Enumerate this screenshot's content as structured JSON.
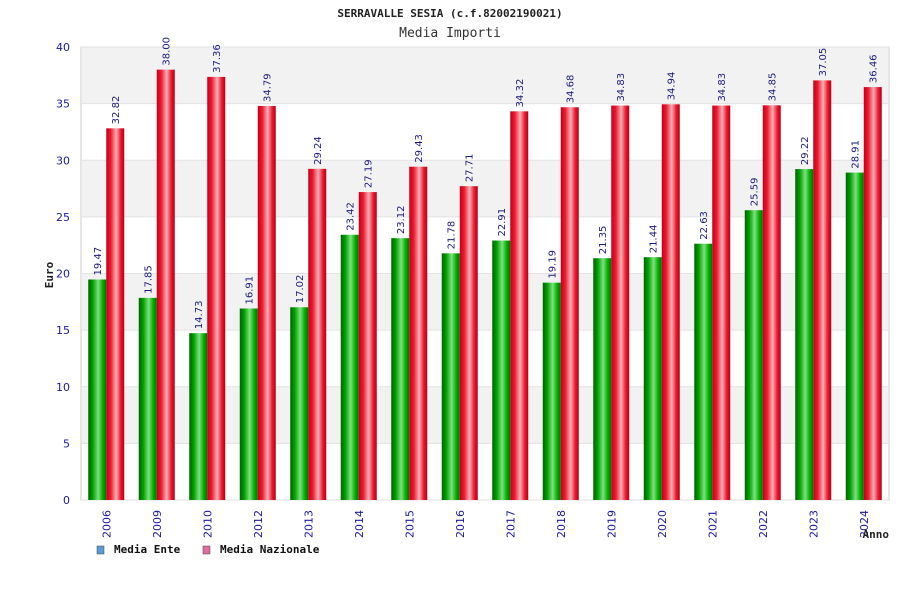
{
  "chart_data": {
    "type": "bar",
    "title": "SERRAVALLE SESIA (c.f.82002190021)",
    "subtitle": "Media Importi",
    "xlabel": "Anno",
    "ylabel": "Euro",
    "ylim": [
      0,
      40
    ],
    "yticks": [
      0,
      5,
      10,
      15,
      20,
      25,
      30,
      35,
      40
    ],
    "grid": true,
    "legend_position": "bottom-left",
    "categories": [
      "2006",
      "2009",
      "2010",
      "2012",
      "2013",
      "2014",
      "2015",
      "2016",
      "2017",
      "2018",
      "2019",
      "2020",
      "2021",
      "2022",
      "2023",
      "2024"
    ],
    "series": [
      {
        "name": "Media Ente",
        "color": "#00b000",
        "legend_color": "#5b9bd5",
        "values": [
          19.47,
          17.85,
          14.73,
          16.91,
          17.02,
          23.42,
          23.12,
          21.78,
          22.91,
          19.19,
          21.35,
          21.44,
          22.63,
          25.59,
          29.22,
          28.91
        ],
        "labels": [
          "19.47",
          "17.85",
          "14.73",
          "16.91",
          "17.02",
          "23.42",
          "23.12",
          "21.78",
          "22.91",
          "19.19",
          "21.35",
          "21.44",
          "22.63",
          "25.59",
          "29.22",
          "28.91"
        ]
      },
      {
        "name": "Media Nazionale",
        "color": "#e8001c",
        "legend_color": "#e06c9f",
        "values": [
          32.82,
          38.0,
          37.36,
          34.79,
          29.24,
          27.19,
          29.43,
          27.71,
          34.32,
          34.68,
          34.83,
          34.94,
          34.83,
          34.85,
          37.05,
          36.46
        ],
        "labels": [
          "32.82",
          "38.00",
          "37.36",
          "34.79",
          "29.24",
          "27.19",
          "29.43",
          "27.71",
          "34.32",
          "34.68",
          "34.83",
          "34.94",
          "34.83",
          "34.85",
          "37.05",
          "36.46"
        ]
      }
    ]
  }
}
